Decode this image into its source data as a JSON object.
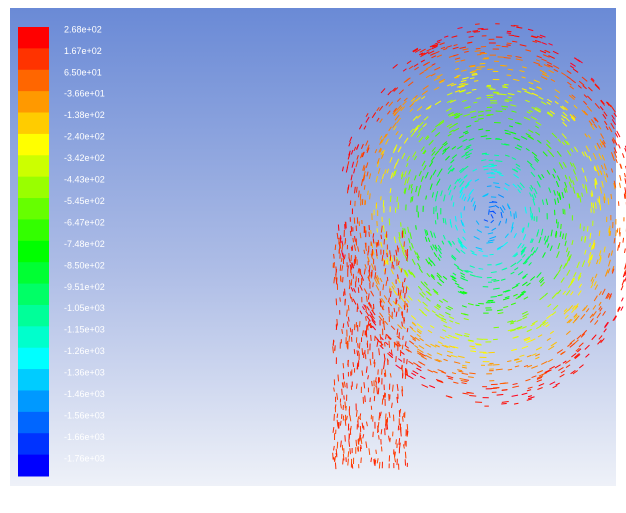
{
  "legend": {
    "labels": [
      "2.68e+02",
      "1.67e+02",
      "6.50e+01",
      "-3.66e+01",
      "-1.38e+02",
      "-2.40e+02",
      "-3.42e+02",
      "-4.43e+02",
      "-5.45e+02",
      "-6.47e+02",
      "-7.48e+02",
      "-8.50e+02",
      "-9.51e+02",
      "-1.05e+03",
      "-1.15e+03",
      "-1.26e+03",
      "-1.36e+03",
      "-1.46e+03",
      "-1.56e+03",
      "-1.66e+03",
      "-1.76e+03"
    ]
  }
}
